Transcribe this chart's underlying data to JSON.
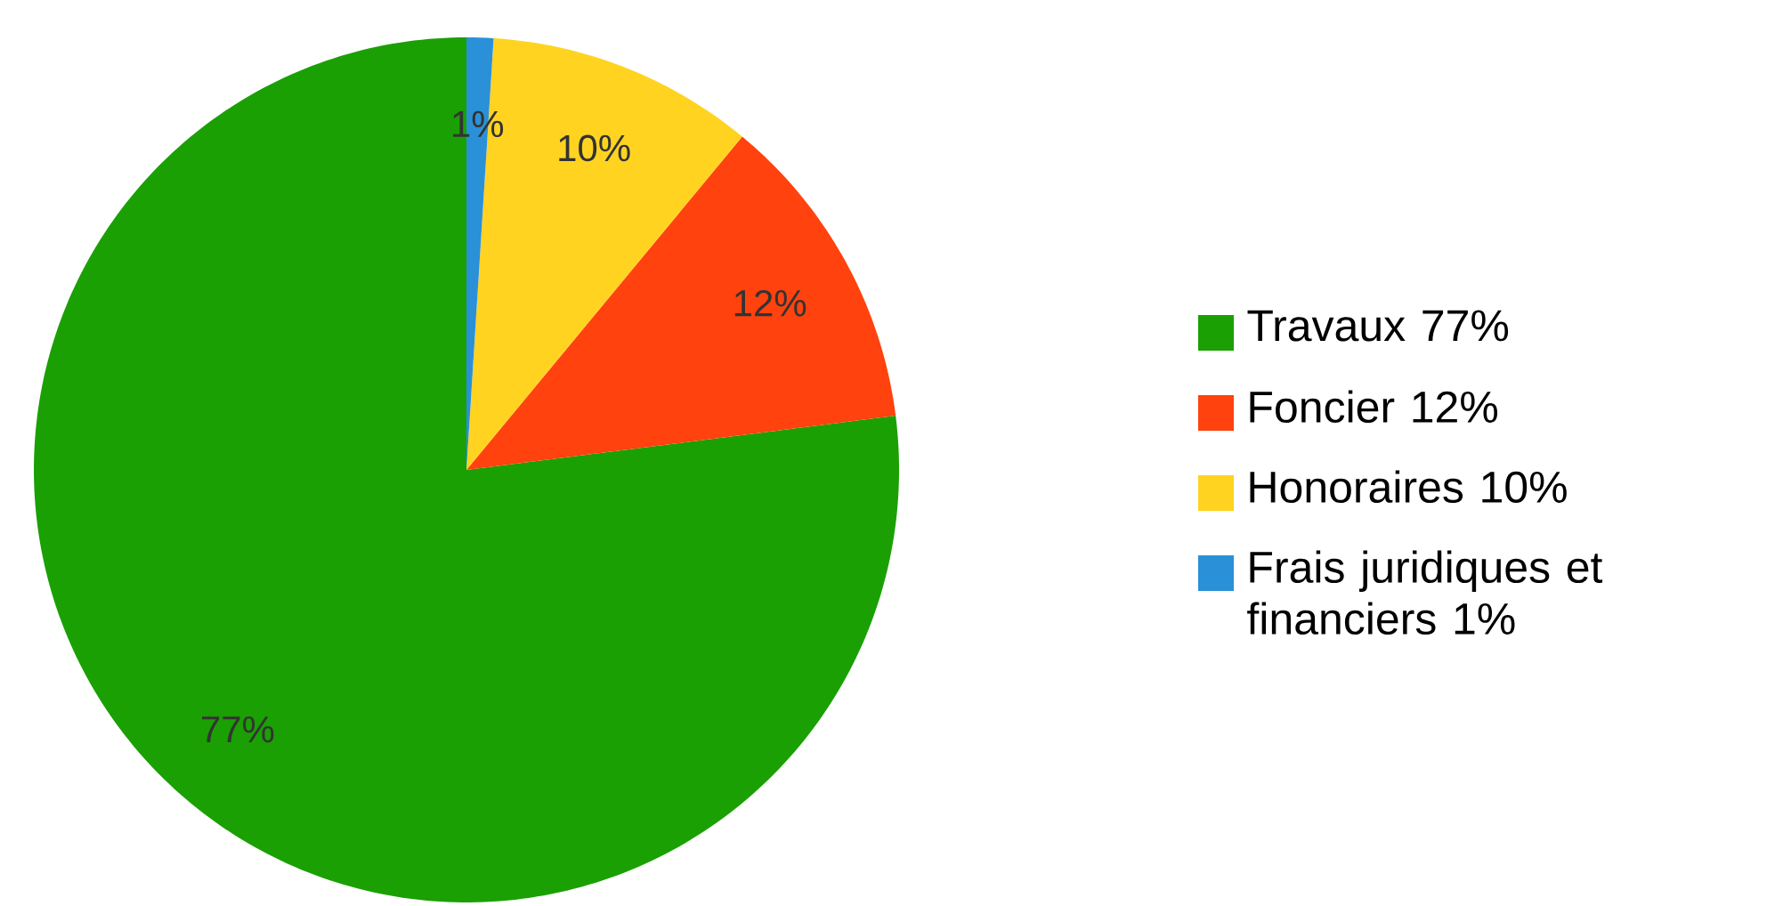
{
  "chart_data": {
    "type": "pie",
    "categories": [
      "Travaux 77%",
      "Foncier 12%",
      "Honoraires 10%",
      "Frais juridiques et financiers 1%"
    ],
    "values": [
      77,
      12,
      10,
      1
    ],
    "colors": [
      "#1aa003",
      "#ff420e",
      "#ffd320",
      "#2a90d8"
    ],
    "value_labels": [
      "77%",
      "12%",
      "10%",
      "1%"
    ],
    "legend": "right"
  }
}
